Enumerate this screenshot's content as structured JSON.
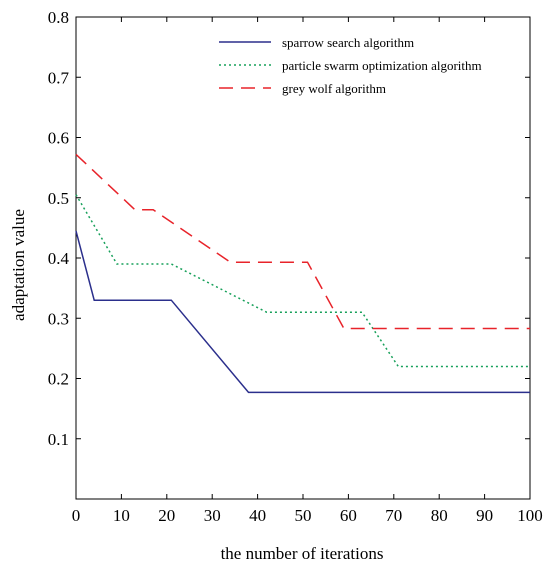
{
  "chart_data": {
    "type": "line",
    "xlabel": "the number of iterations",
    "ylabel": "adaptation value",
    "xlim": [
      0,
      100
    ],
    "ylim": [
      0,
      0.8
    ],
    "x_ticks": [
      "0",
      "10",
      "20",
      "30",
      "40",
      "50",
      "60",
      "70",
      "80",
      "90",
      "100"
    ],
    "y_ticks": [
      "0.1",
      "0.2",
      "0.3",
      "0.4",
      "0.5",
      "0.6",
      "0.7",
      "0.8"
    ],
    "legend_position": "top-right",
    "grid": false,
    "series": [
      {
        "name": "sparrow search algorithm",
        "color": "#2b2f8c",
        "style": "solid",
        "points": [
          [
            0,
            0.445
          ],
          [
            4,
            0.33
          ],
          [
            21,
            0.33
          ],
          [
            38,
            0.177
          ],
          [
            100,
            0.177
          ]
        ]
      },
      {
        "name": "particle swarm optimization algorithm",
        "color": "#17a05a",
        "style": "dotted",
        "points": [
          [
            0,
            0.505
          ],
          [
            9,
            0.39
          ],
          [
            21,
            0.39
          ],
          [
            42,
            0.31
          ],
          [
            63,
            0.31
          ],
          [
            71,
            0.22
          ],
          [
            100,
            0.22
          ]
        ]
      },
      {
        "name": "grey wolf algorithm",
        "color": "#e8232a",
        "style": "dashed",
        "points": [
          [
            0,
            0.572
          ],
          [
            13,
            0.48
          ],
          [
            17,
            0.48
          ],
          [
            34,
            0.393
          ],
          [
            51,
            0.393
          ],
          [
            59,
            0.283
          ],
          [
            100,
            0.283
          ]
        ]
      }
    ]
  }
}
